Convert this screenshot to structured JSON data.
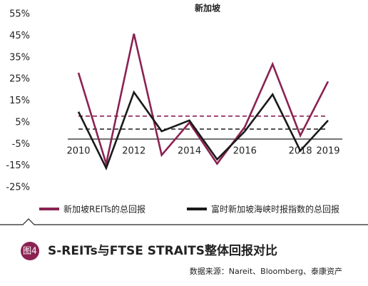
{
  "chart_data": {
    "type": "line",
    "title": "新加坡",
    "categories": [
      "2010",
      null,
      "2012",
      null,
      "2014",
      null,
      "2016",
      null,
      "2018",
      "2019"
    ],
    "series": [
      {
        "name": "新加坡REITs的总回报",
        "color": "#8b2252",
        "values": [
          28,
          -14,
          46,
          -10,
          5,
          -14,
          3,
          32,
          -1,
          24
        ]
      },
      {
        "name": "富时新加坡海峡时报指数的总回报",
        "color": "#1a1a1a",
        "values": [
          10,
          -16,
          19,
          1,
          6,
          -12,
          1,
          18,
          -8,
          6
        ]
      }
    ],
    "reference_lines": [
      {
        "value": 8,
        "color": "#8b2252"
      },
      {
        "value": 2,
        "color": "#1a1a1a"
      }
    ],
    "ylim": [
      -25,
      55
    ],
    "yticks": [
      {
        "value": 55,
        "label": "55%"
      },
      {
        "value": 45,
        "label": "45%"
      },
      {
        "value": 35,
        "label": "35%"
      },
      {
        "value": 25,
        "label": "25%"
      },
      {
        "value": 15,
        "label": "15%"
      },
      {
        "value": 5,
        "label": "5%"
      },
      {
        "value": -5,
        "label": "-5%"
      },
      {
        "value": -15,
        "label": "-15%"
      },
      {
        "value": -25,
        "label": "-25%"
      }
    ],
    "grid": false,
    "legend": "bottom",
    "figure_label": "图4",
    "caption": "S-REITs与FTSE STRAITS整体回报对比",
    "source": "数据来源：Nareit、Bloomberg、泰康资产"
  }
}
